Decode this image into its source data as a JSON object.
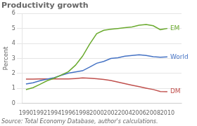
{
  "chart_data": {
    "type": "line",
    "title": "Productivity growth",
    "ylabel": "Percent",
    "source": "Source: Total Economy Database, author's calculations.",
    "x": [
      1990,
      1991,
      1992,
      1993,
      1994,
      1995,
      1996,
      1997,
      1998,
      1999,
      2000,
      2001,
      2002,
      2003,
      2004,
      2005,
      2006,
      2007,
      2008,
      2009,
      2010
    ],
    "series": [
      {
        "name": "EM",
        "color": "#6aaa2e",
        "values": [
          0.92,
          1.05,
          1.28,
          1.52,
          1.68,
          1.9,
          2.12,
          2.55,
          3.15,
          3.95,
          4.65,
          4.88,
          4.95,
          5.0,
          5.05,
          5.1,
          5.22,
          5.26,
          5.18,
          4.92,
          5.0
        ]
      },
      {
        "name": "World",
        "color": "#4472c4",
        "values": [
          1.3,
          1.38,
          1.52,
          1.62,
          1.72,
          1.88,
          2.02,
          2.1,
          2.18,
          2.42,
          2.68,
          2.8,
          3.0,
          3.05,
          3.15,
          3.2,
          3.25,
          3.2,
          3.12,
          3.08,
          3.1
        ]
      },
      {
        "name": "DM",
        "color": "#c0504d",
        "values": [
          1.62,
          1.62,
          1.63,
          1.64,
          1.64,
          1.63,
          1.63,
          1.66,
          1.7,
          1.68,
          1.65,
          1.6,
          1.53,
          1.43,
          1.32,
          1.22,
          1.12,
          1.02,
          0.93,
          0.8,
          0.78
        ]
      }
    ],
    "xlim": [
      1989.5,
      2012.0
    ],
    "xticks": [
      1990,
      1992,
      1994,
      1996,
      1998,
      2000,
      2002,
      2004,
      2006,
      2008,
      2010
    ],
    "ylim": [
      0,
      6
    ],
    "yticks": [
      0,
      1,
      2,
      3,
      4,
      5,
      6
    ],
    "grid": true
  }
}
